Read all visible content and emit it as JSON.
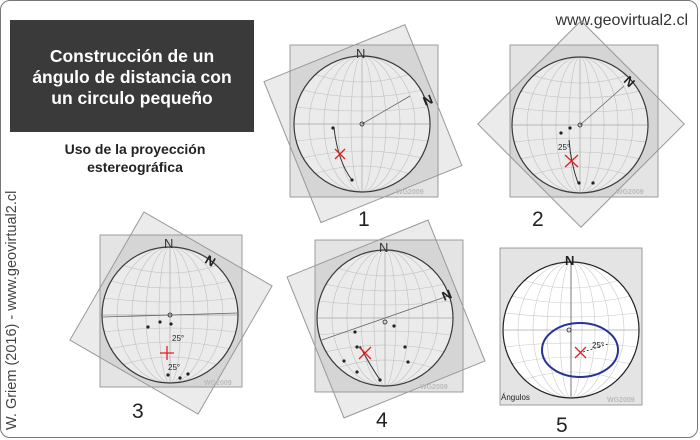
{
  "header": {
    "title": "Construcción de un\nángulo de  distancia con\nun circulo pequeño",
    "subtitle": "Uso de la proyección\nestereográfica",
    "website": "www.geovirtual2.cl",
    "credit": "W. Griem (2016) - www.geovirtual2.cl"
  },
  "panels": [
    {
      "number": "1",
      "north_label": "N",
      "north_label_2": "N",
      "watermark": "WG2009"
    },
    {
      "number": "2",
      "north_label": "N",
      "angle_label": "25°",
      "watermark": "WG2009"
    },
    {
      "number": "3",
      "north_label": "N",
      "angle_label_1": "25°",
      "angle_label_2": "25°",
      "watermark": "WG2009"
    },
    {
      "number": "4",
      "north_label": "N",
      "north_label_2": "N",
      "watermark": "WG2009"
    },
    {
      "number": "5",
      "north_label": "N",
      "angle_label": "25°",
      "caption": "Ángulos",
      "watermark": "WG2009"
    }
  ],
  "colors": {
    "title_bg": "#3a3a3a",
    "overlay": "#d6d6d6",
    "marker": "#e02020",
    "small_circle": "#28329a"
  }
}
